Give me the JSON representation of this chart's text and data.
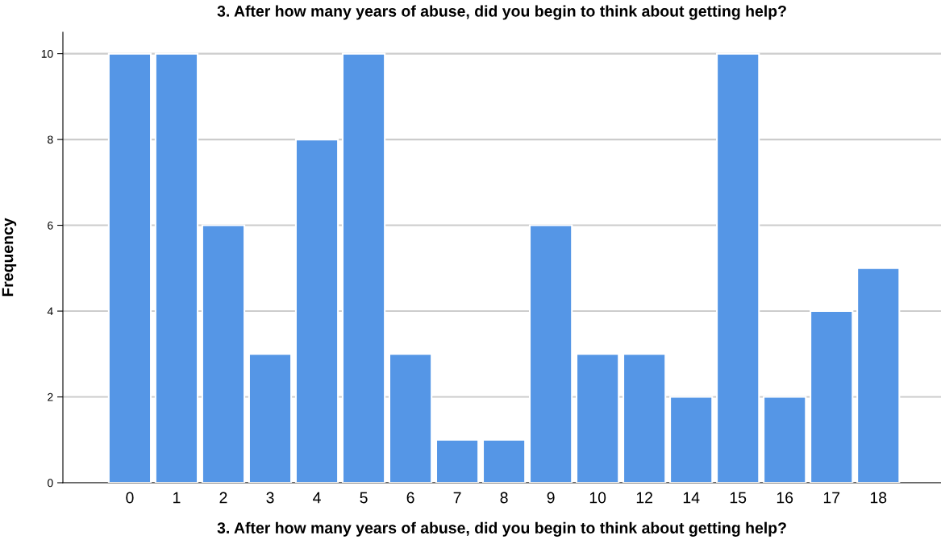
{
  "chart_data": {
    "type": "bar",
    "title": "3. After how many years of abuse, did you begin to think about getting help?",
    "xlabel": "3. After how many years of abuse, did you begin to think about getting help?",
    "ylabel": "Frequency",
    "categories": [
      "0",
      "1",
      "2",
      "3",
      "4",
      "5",
      "6",
      "7",
      "8",
      "9",
      "10",
      "12",
      "14",
      "15",
      "16",
      "17",
      "18"
    ],
    "values": [
      10,
      10,
      6,
      3,
      8,
      10,
      3,
      1,
      1,
      6,
      3,
      3,
      2,
      10,
      2,
      4,
      5
    ],
    "color": "#5596e6",
    "ylim": [
      0,
      10.5
    ],
    "yticks": [
      0,
      2,
      4,
      6,
      8,
      10
    ],
    "grid": "y"
  }
}
